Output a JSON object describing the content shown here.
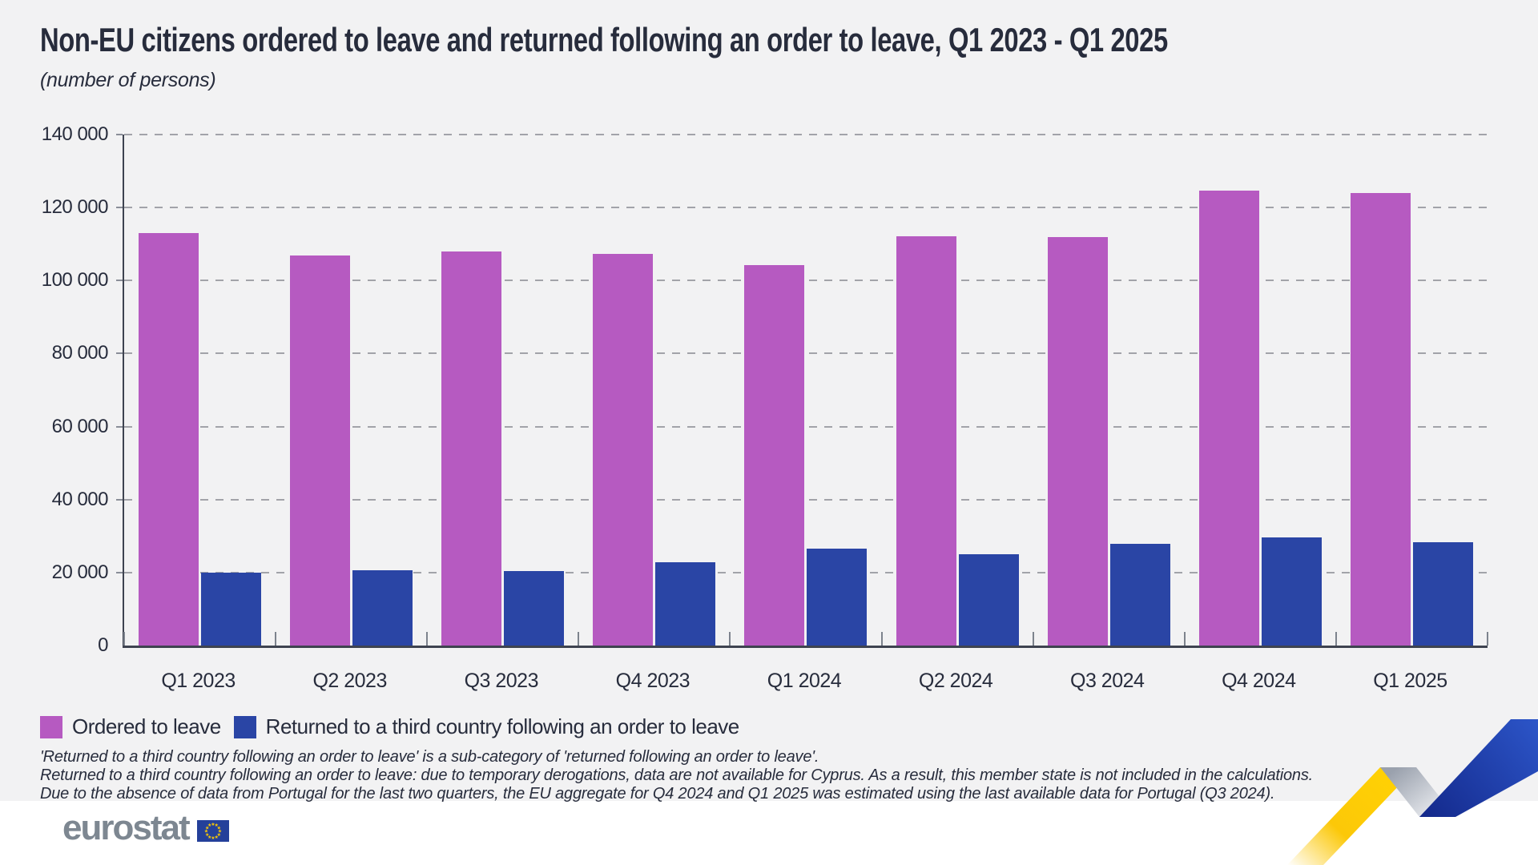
{
  "header": {
    "title": "Non-EU citizens ordered to leave and returned following an order to leave, Q1 2023 - Q1 2025",
    "subtitle": "(number of persons)"
  },
  "chart_data": {
    "type": "bar",
    "categories": [
      "Q1 2023",
      "Q2 2023",
      "Q3 2023",
      "Q4 2023",
      "Q1 2024",
      "Q2 2024",
      "Q3 2024",
      "Q4 2024",
      "Q1 2025"
    ],
    "series": [
      {
        "name": "Ordered to leave",
        "color": "#b65ac1",
        "values": [
          113000,
          106900,
          108000,
          107200,
          104300,
          112100,
          112000,
          124700,
          123900
        ]
      },
      {
        "name": "Returned to a third country following an order to leave",
        "color": "#2a45a5",
        "values": [
          19900,
          20700,
          20400,
          22800,
          26500,
          25100,
          27900,
          29700,
          28400
        ]
      }
    ],
    "title": "Non-EU citizens ordered to leave and returned following an order to leave, Q1 2023 - Q1 2025",
    "xlabel": "",
    "ylabel": "number of persons",
    "ylim": [
      0,
      140000
    ],
    "ytick_step": 20000,
    "ytick_labels": [
      "0",
      "20 000",
      "40 000",
      "60 000",
      "80 000",
      "100 000",
      "120 000",
      "140 000"
    ],
    "grid": "horizontal-dashed",
    "legend_position": "bottom-left"
  },
  "legend": {
    "items": [
      {
        "label": "Ordered to leave",
        "color": "#b65ac1"
      },
      {
        "label": "Returned to a third country following an order to leave",
        "color": "#2a45a5"
      }
    ]
  },
  "footnotes": {
    "lines": [
      "'Returned to a third country following an order to leave' is a sub-category of 'returned following an order to leave'.",
      "Returned to a third country following an order to leave: due to temporary derogations, data are not available for Cyprus. As a result, this member state is not included in the calculations.",
      "Due to the absence of data from Portugal for the last two quarters, the EU aggregate for Q4 2024 and Q1 2025 was estimated using the last available data for Portugal (Q3 2024)."
    ]
  },
  "footer": {
    "logo_text": "eurostat"
  },
  "colors": {
    "background": "#f2f2f3",
    "footer_background": "#ffffff",
    "text": "#272c3c",
    "axis": "#3e4350",
    "gridline": "#a2a3a9",
    "logo_gray": "#7d8791",
    "flag_blue": "#24409a",
    "star_yellow": "#ffcc00",
    "ribbon_yellow": "#fdca00",
    "ribbon_gray": "#9aa1ad",
    "ribbon_blue": "#2449b2"
  }
}
